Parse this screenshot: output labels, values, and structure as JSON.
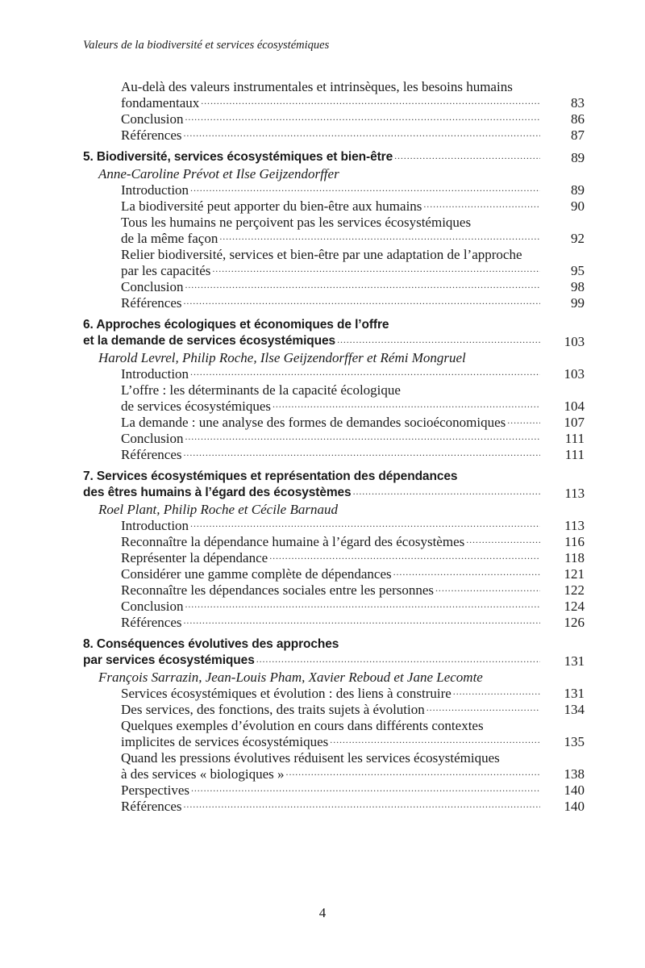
{
  "running_header": "Valeurs de la biodiversité et services écosystémiques",
  "page_number": "4",
  "toc": [
    {
      "chapter": null,
      "authors": null,
      "items": [
        {
          "lines": [
            "Au-delà des valeurs instrumentales et intrinsèques, les besoins humains",
            "fondamentaux"
          ],
          "page": "83"
        },
        {
          "lines": [
            "Conclusion"
          ],
          "page": "86"
        },
        {
          "lines": [
            "Références"
          ],
          "page": "87"
        }
      ]
    },
    {
      "chapter": {
        "lines": [
          "5.  Biodiversité, services écosystémiques et bien-être"
        ],
        "page": "89"
      },
      "authors": "Anne-Caroline Prévot et Ilse Geijzendorffer",
      "items": [
        {
          "lines": [
            "Introduction"
          ],
          "page": "89"
        },
        {
          "lines": [
            "La biodiversité peut apporter du bien-être aux humains"
          ],
          "page": "90"
        },
        {
          "lines": [
            "Tous les humains ne perçoivent pas les services écosystémiques",
            "de la même façon"
          ],
          "page": "92"
        },
        {
          "lines": [
            "Relier biodiversité, services et bien-être par une adaptation de l’approche",
            "par les capacités"
          ],
          "page": "95"
        },
        {
          "lines": [
            "Conclusion"
          ],
          "page": "98"
        },
        {
          "lines": [
            "Références"
          ],
          "page": "99"
        }
      ]
    },
    {
      "chapter": {
        "lines": [
          "6.  Approches écologiques et économiques de l’offre",
          "et la demande de services écosystémiques"
        ],
        "page": "103"
      },
      "authors": "Harold Levrel, Philip Roche, Ilse Geijzendorffer et Rémi Mongruel",
      "items": [
        {
          "lines": [
            "Introduction"
          ],
          "page": "103"
        },
        {
          "lines": [
            "L’offre : les déterminants de la capacité écologique",
            "de services écosystémiques"
          ],
          "page": "104"
        },
        {
          "lines": [
            "La demande : une analyse des formes de demandes socioéconomiques"
          ],
          "page": "107"
        },
        {
          "lines": [
            "Conclusion"
          ],
          "page": "111"
        },
        {
          "lines": [
            "Références"
          ],
          "page": "111"
        }
      ]
    },
    {
      "chapter": {
        "lines": [
          "7.  Services écosystémiques et représentation des dépendances",
          "des êtres humains à l’égard des écosystèmes"
        ],
        "page": "113"
      },
      "authors": "Roel Plant, Philip Roche et Cécile Barnaud",
      "items": [
        {
          "lines": [
            "Introduction"
          ],
          "page": "113"
        },
        {
          "lines": [
            "Reconnaître la dépendance humaine à l’égard des écosystèmes"
          ],
          "page": "116"
        },
        {
          "lines": [
            "Représenter la dépendance"
          ],
          "page": "118"
        },
        {
          "lines": [
            "Considérer une gamme complète de dépendances"
          ],
          "page": "121"
        },
        {
          "lines": [
            "Reconnaître les dépendances sociales entre les personnes"
          ],
          "page": "122"
        },
        {
          "lines": [
            "Conclusion"
          ],
          "page": "124"
        },
        {
          "lines": [
            "Références"
          ],
          "page": "126"
        }
      ]
    },
    {
      "chapter": {
        "lines": [
          "8.  Conséquences évolutives des approches",
          "par services écosystémiques"
        ],
        "page": "131"
      },
      "authors": "François Sarrazin, Jean-Louis Pham, Xavier Reboud et Jane Lecomte",
      "items": [
        {
          "lines": [
            "Services écosystémiques et évolution : des liens à construire"
          ],
          "page": "131"
        },
        {
          "lines": [
            "Des services, des fonctions, des traits sujets à évolution"
          ],
          "page": "134"
        },
        {
          "lines": [
            "Quelques exemples d’évolution en cours dans différents contextes",
            "implicites de services écosystémiques"
          ],
          "page": "135"
        },
        {
          "lines": [
            "Quand les pressions évolutives réduisent les services écosystémiques",
            "à des services « biologiques »"
          ],
          "page": "138"
        },
        {
          "lines": [
            "Perspectives"
          ],
          "page": "140"
        },
        {
          "lines": [
            "Références"
          ],
          "page": "140"
        }
      ]
    }
  ]
}
